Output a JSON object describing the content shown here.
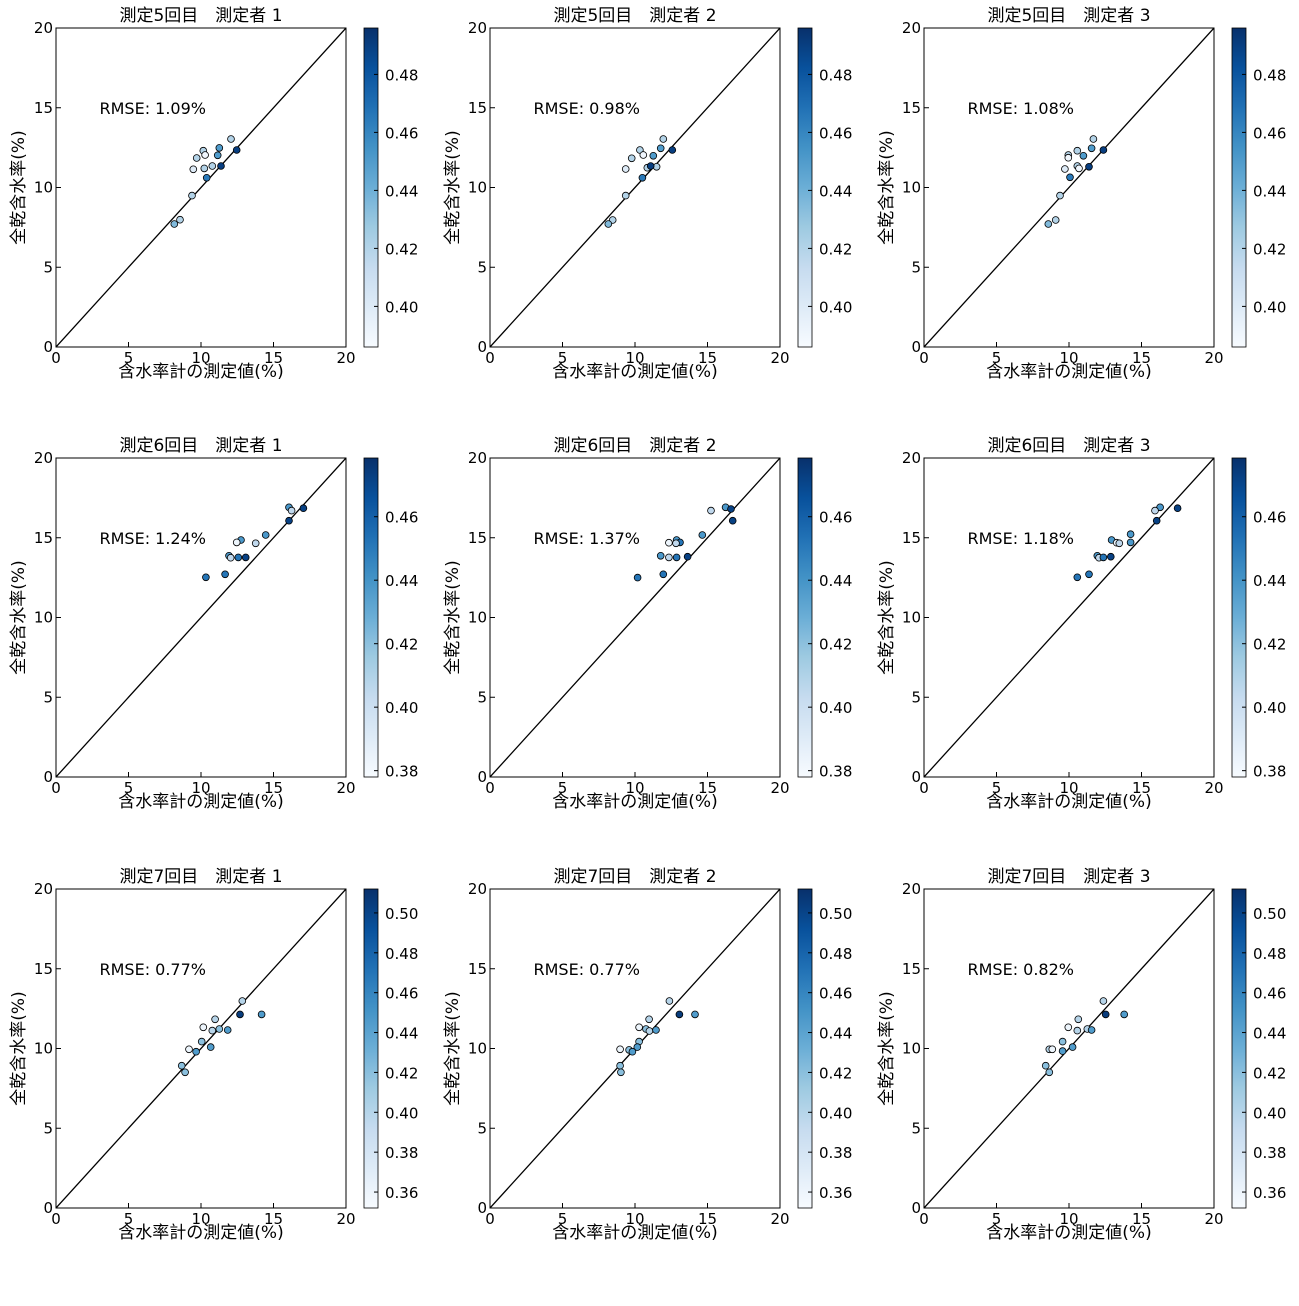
{
  "colormap": "Blues",
  "colormap_stops": [
    "#f7fbff",
    "#deebf7",
    "#c6dbef",
    "#9ecae1",
    "#6baed6",
    "#4292c6",
    "#2171b5",
    "#08519c",
    "#08306b"
  ],
  "chart_data": [
    {
      "type": "scatter",
      "title": "測定5回目　測定者 1",
      "xlabel": "含水率計の測定値(%)",
      "ylabel": "全乾含水率(%)",
      "xlim": [
        0,
        20
      ],
      "ylim": [
        0,
        20
      ],
      "xticks": [
        0,
        5,
        10,
        15,
        20
      ],
      "yticks": [
        0,
        5,
        10,
        15,
        20
      ],
      "annotation": "RMSE: 1.09%",
      "reference_line": "y = x",
      "colorbar": {
        "range": [
          0.386,
          0.496
        ],
        "ticks": [
          "0.40",
          "0.42",
          "0.44",
          "0.46",
          "0.48"
        ]
      },
      "points": [
        [
          12.07,
          13.04,
          0.42
        ],
        [
          12.46,
          12.35,
          0.49
        ],
        [
          11.26,
          12.48,
          0.45
        ],
        [
          10.16,
          12.31,
          0.42
        ],
        [
          9.7,
          11.85,
          0.42
        ],
        [
          10.28,
          12.04,
          0.39
        ],
        [
          11.15,
          12.02,
          0.45
        ],
        [
          9.47,
          11.14,
          0.4
        ],
        [
          10.23,
          11.2,
          0.42
        ],
        [
          10.78,
          11.35,
          0.42
        ],
        [
          11.38,
          11.35,
          0.49
        ],
        [
          10.39,
          10.61,
          0.465
        ],
        [
          9.38,
          9.49,
          0.42
        ],
        [
          8.55,
          7.98,
          0.42
        ],
        [
          8.16,
          7.71,
          0.435
        ]
      ]
    },
    {
      "type": "scatter",
      "title": "測定5回目　測定者 2",
      "xlabel": "含水率計の測定値(%)",
      "ylabel": "全乾含水率(%)",
      "xlim": [
        0,
        20
      ],
      "ylim": [
        0,
        20
      ],
      "xticks": [
        0,
        5,
        10,
        15,
        20
      ],
      "yticks": [
        0,
        5,
        10,
        15,
        20
      ],
      "annotation": "RMSE: 0.98%",
      "reference_line": "y = x",
      "colorbar": {
        "range": [
          0.386,
          0.496
        ],
        "ticks": [
          "0.40",
          "0.42",
          "0.44",
          "0.46",
          "0.48"
        ]
      },
      "points": [
        [
          11.95,
          13.04,
          0.42
        ],
        [
          11.77,
          12.46,
          0.45
        ],
        [
          12.57,
          12.35,
          0.49
        ],
        [
          10.34,
          12.35,
          0.42
        ],
        [
          10.57,
          12.04,
          0.39
        ],
        [
          9.77,
          11.83,
          0.42
        ],
        [
          11.26,
          11.99,
          0.45
        ],
        [
          9.36,
          11.16,
          0.4
        ],
        [
          10.85,
          11.24,
          0.42
        ],
        [
          11.49,
          11.3,
          0.42
        ],
        [
          11.08,
          11.35,
          0.49
        ],
        [
          10.51,
          10.61,
          0.465
        ],
        [
          9.36,
          9.49,
          0.42
        ],
        [
          8.46,
          7.96,
          0.42
        ],
        [
          8.16,
          7.71,
          0.435
        ]
      ]
    },
    {
      "type": "scatter",
      "title": "測定5回目　測定者 3",
      "xlabel": "含水率計の測定値(%)",
      "ylabel": "全乾含水率(%)",
      "xlim": [
        0,
        20
      ],
      "ylim": [
        0,
        20
      ],
      "xticks": [
        0,
        5,
        10,
        15,
        20
      ],
      "yticks": [
        0,
        5,
        10,
        15,
        20
      ],
      "annotation": "RMSE: 1.08%",
      "reference_line": "y = x",
      "colorbar": {
        "range": [
          0.386,
          0.496
        ],
        "ticks": [
          "0.40",
          "0.42",
          "0.44",
          "0.46",
          "0.48"
        ]
      },
      "points": [
        [
          11.68,
          13.04,
          0.42
        ],
        [
          11.56,
          12.46,
          0.45
        ],
        [
          12.37,
          12.35,
          0.49
        ],
        [
          10.57,
          12.31,
          0.42
        ],
        [
          9.95,
          12.04,
          0.42
        ],
        [
          9.95,
          11.87,
          0.39
        ],
        [
          10.99,
          11.99,
          0.45
        ],
        [
          9.72,
          11.16,
          0.4
        ],
        [
          10.57,
          11.35,
          0.42
        ],
        [
          10.69,
          11.2,
          0.39
        ],
        [
          11.38,
          11.3,
          0.49
        ],
        [
          10.07,
          10.64,
          0.465
        ],
        [
          9.38,
          9.49,
          0.42
        ],
        [
          9.08,
          7.96,
          0.42
        ],
        [
          8.57,
          7.71,
          0.435
        ]
      ]
    },
    {
      "type": "scatter",
      "title": "測定6回目　測定者 1",
      "xlabel": "含水率計の測定値(%)",
      "ylabel": "全乾含水率(%)",
      "xlim": [
        0,
        20
      ],
      "ylim": [
        0,
        20
      ],
      "xticks": [
        0,
        5,
        10,
        15,
        20
      ],
      "yticks": [
        0,
        5,
        10,
        15,
        20
      ],
      "annotation": "RMSE: 1.24%",
      "reference_line": "y = x",
      "colorbar": {
        "range": [
          0.378,
          0.4785
        ],
        "ticks": [
          "0.38",
          "0.40",
          "0.42",
          "0.44",
          "0.46"
        ]
      },
      "points": [
        [
          16.07,
          16.91,
          0.438
        ],
        [
          16.25,
          16.7,
          0.405
        ],
        [
          17.06,
          16.85,
          0.472
        ],
        [
          16.07,
          16.07,
          0.472
        ],
        [
          14.46,
          15.17,
          0.438
        ],
        [
          13.77,
          14.65,
          0.405
        ],
        [
          12.76,
          14.86,
          0.438
        ],
        [
          12.46,
          14.71,
          0.383
        ],
        [
          11.93,
          13.87,
          0.438
        ],
        [
          12.05,
          13.75,
          0.405
        ],
        [
          12.57,
          13.77,
          0.452
        ],
        [
          13.08,
          13.77,
          0.472
        ],
        [
          11.66,
          12.71,
          0.452
        ],
        [
          10.34,
          12.52,
          0.452
        ]
      ]
    },
    {
      "type": "scatter",
      "title": "測定6回目　測定者 2",
      "xlabel": "含水率計の測定値(%)",
      "ylabel": "全乾含水率(%)",
      "xlim": [
        0,
        20
      ],
      "ylim": [
        0,
        20
      ],
      "xticks": [
        0,
        5,
        10,
        15,
        20
      ],
      "yticks": [
        0,
        5,
        10,
        15,
        20
      ],
      "annotation": "RMSE: 1.37%",
      "reference_line": "y = x",
      "colorbar": {
        "range": [
          0.378,
          0.4785
        ],
        "ticks": [
          "0.38",
          "0.40",
          "0.42",
          "0.44",
          "0.46"
        ]
      },
      "points": [
        [
          15.24,
          16.7,
          0.405
        ],
        [
          16.25,
          16.91,
          0.438
        ],
        [
          16.62,
          16.8,
          0.472
        ],
        [
          16.74,
          16.07,
          0.472
        ],
        [
          14.64,
          15.17,
          0.438
        ],
        [
          12.87,
          14.86,
          0.438
        ],
        [
          13.1,
          14.71,
          0.452
        ],
        [
          12.83,
          14.65,
          0.405
        ],
        [
          12.34,
          14.69,
          0.383
        ],
        [
          11.77,
          13.87,
          0.438
        ],
        [
          12.34,
          13.77,
          0.405
        ],
        [
          12.87,
          13.77,
          0.452
        ],
        [
          13.63,
          13.81,
          0.472
        ],
        [
          11.95,
          12.71,
          0.452
        ],
        [
          10.18,
          12.5,
          0.452
        ]
      ]
    },
    {
      "type": "scatter",
      "title": "測定6回目　測定者 3",
      "xlabel": "含水率計の測定値(%)",
      "ylabel": "全乾含水率(%)",
      "xlim": [
        0,
        20
      ],
      "ylim": [
        0,
        20
      ],
      "xticks": [
        0,
        5,
        10,
        15,
        20
      ],
      "yticks": [
        0,
        5,
        10,
        15,
        20
      ],
      "annotation": "RMSE: 1.18%",
      "reference_line": "y = x",
      "colorbar": {
        "range": [
          0.378,
          0.4785
        ],
        "ticks": [
          "0.38",
          "0.40",
          "0.42",
          "0.44",
          "0.46"
        ]
      },
      "points": [
        [
          16.28,
          16.91,
          0.438
        ],
        [
          15.93,
          16.7,
          0.405
        ],
        [
          17.49,
          16.85,
          0.472
        ],
        [
          16.05,
          16.07,
          0.472
        ],
        [
          14.25,
          15.22,
          0.438
        ],
        [
          14.25,
          14.71,
          0.438
        ],
        [
          12.94,
          14.86,
          0.438
        ],
        [
          13.29,
          14.69,
          0.383
        ],
        [
          13.47,
          14.65,
          0.405
        ],
        [
          11.95,
          13.87,
          0.438
        ],
        [
          12.07,
          13.75,
          0.405
        ],
        [
          12.37,
          13.77,
          0.452
        ],
        [
          12.88,
          13.81,
          0.472
        ],
        [
          11.38,
          12.71,
          0.452
        ],
        [
          10.57,
          12.52,
          0.452
        ]
      ]
    },
    {
      "type": "scatter",
      "title": "測定7回目　測定者 1",
      "xlabel": "含水率計の測定値(%)",
      "ylabel": "全乾含水率(%)",
      "xlim": [
        0,
        20
      ],
      "ylim": [
        0,
        20
      ],
      "xticks": [
        0,
        5,
        10,
        15,
        20
      ],
      "yticks": [
        0,
        5,
        10,
        15,
        20
      ],
      "annotation": "RMSE: 0.77%",
      "reference_line": "y = x",
      "colorbar": {
        "range": [
          0.352,
          0.512
        ],
        "ticks": [
          "0.36",
          "0.38",
          "0.40",
          "0.42",
          "0.44",
          "0.46",
          "0.48",
          "0.50"
        ]
      },
      "points": [
        [
          12.85,
          12.98,
          0.4
        ],
        [
          12.69,
          12.14,
          0.505
        ],
        [
          14.18,
          12.14,
          0.445
        ],
        [
          10.97,
          11.83,
          0.4
        ],
        [
          10.16,
          11.33,
          0.36
        ],
        [
          10.78,
          11.12,
          0.4
        ],
        [
          11.26,
          11.22,
          0.42
        ],
        [
          11.84,
          11.16,
          0.445
        ],
        [
          10.05,
          10.43,
          0.42
        ],
        [
          10.67,
          10.09,
          0.445
        ],
        [
          9.17,
          9.95,
          0.36
        ],
        [
          9.66,
          9.8,
          0.445
        ],
        [
          8.67,
          8.92,
          0.42
        ],
        [
          8.9,
          8.51,
          0.42
        ]
      ]
    },
    {
      "type": "scatter",
      "title": "測定7回目　測定者 2",
      "xlabel": "含水率計の測定値(%)",
      "ylabel": "全乾含水率(%)",
      "xlim": [
        0,
        20
      ],
      "ylim": [
        0,
        20
      ],
      "xticks": [
        0,
        5,
        10,
        15,
        20
      ],
      "yticks": [
        0,
        5,
        10,
        15,
        20
      ],
      "annotation": "RMSE: 0.77%",
      "reference_line": "y = x",
      "colorbar": {
        "range": [
          0.352,
          0.512
        ],
        "ticks": [
          "0.36",
          "0.38",
          "0.40",
          "0.42",
          "0.44",
          "0.46",
          "0.48",
          "0.50"
        ]
      },
      "points": [
        [
          12.37,
          12.98,
          0.4
        ],
        [
          13.06,
          12.14,
          0.505
        ],
        [
          14.14,
          12.14,
          0.445
        ],
        [
          10.97,
          11.83,
          0.4
        ],
        [
          10.28,
          11.33,
          0.36
        ],
        [
          10.76,
          11.22,
          0.42
        ],
        [
          10.99,
          11.1,
          0.4
        ],
        [
          11.45,
          11.16,
          0.445
        ],
        [
          10.28,
          10.43,
          0.42
        ],
        [
          10.16,
          10.09,
          0.445
        ],
        [
          8.97,
          9.95,
          0.36
        ],
        [
          9.59,
          9.91,
          0.42
        ],
        [
          9.82,
          9.8,
          0.445
        ],
        [
          8.97,
          8.92,
          0.42
        ],
        [
          9.03,
          8.51,
          0.42
        ]
      ]
    },
    {
      "type": "scatter",
      "title": "測定7回目　測定者 3",
      "xlabel": "含水率計の測定値(%)",
      "ylabel": "全乾含水率(%)",
      "xlim": [
        0,
        20
      ],
      "ylim": [
        0,
        20
      ],
      "xticks": [
        0,
        5,
        10,
        15,
        20
      ],
      "yticks": [
        0,
        5,
        10,
        15,
        20
      ],
      "annotation": "RMSE: 0.82%",
      "reference_line": "y = x",
      "colorbar": {
        "range": [
          0.352,
          0.512
        ],
        "ticks": [
          "0.36",
          "0.38",
          "0.40",
          "0.42",
          "0.44",
          "0.46",
          "0.48",
          "0.50"
        ]
      },
      "points": [
        [
          12.37,
          12.98,
          0.4
        ],
        [
          12.53,
          12.14,
          0.505
        ],
        [
          13.81,
          12.14,
          0.445
        ],
        [
          10.64,
          11.83,
          0.4
        ],
        [
          9.95,
          11.33,
          0.36
        ],
        [
          10.57,
          11.12,
          0.4
        ],
        [
          11.26,
          11.22,
          0.4
        ],
        [
          11.56,
          11.16,
          0.445
        ],
        [
          9.56,
          10.43,
          0.42
        ],
        [
          10.25,
          10.09,
          0.445
        ],
        [
          8.64,
          9.95,
          0.4
        ],
        [
          8.85,
          9.95,
          0.36
        ],
        [
          9.56,
          9.84,
          0.445
        ],
        [
          8.39,
          8.92,
          0.42
        ],
        [
          8.64,
          8.51,
          0.42
        ]
      ]
    }
  ]
}
